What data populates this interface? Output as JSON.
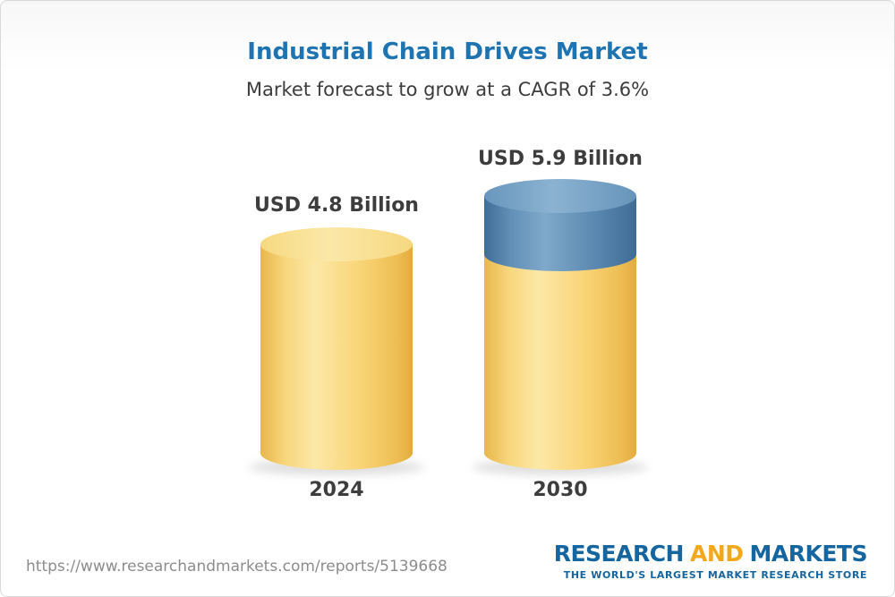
{
  "header": {
    "title": "Industrial Chain Drives Market",
    "subtitle": "Market forecast to grow at a CAGR of 3.6%"
  },
  "chart_data": {
    "type": "bar",
    "variant": "3d-cylinder",
    "categories": [
      "2024",
      "2030"
    ],
    "values": [
      4.8,
      5.9
    ],
    "unit": "USD Billion",
    "value_labels": [
      "USD 4.8 Billion",
      "USD 5.9 Billion"
    ],
    "title": "Industrial Chain Drives Market",
    "subtitle": "Market forecast to grow at a CAGR of 3.6%",
    "cagr_percent": 3.6,
    "xlabel": "",
    "ylabel": "",
    "legend": "none",
    "grid": false,
    "colors": {
      "bar_base": "#f7cf6b",
      "bar_growth_segment": "#5d8bb2",
      "title": "#1e73b1",
      "label_text": "#3d3d3d"
    }
  },
  "footer": {
    "url": "https://www.researchandmarkets.com/reports/5139668",
    "logo": {
      "research": "RESEARCH",
      "and": "AND",
      "markets": "MARKETS",
      "tagline": "THE WORLD'S LARGEST MARKET RESEARCH STORE"
    }
  }
}
